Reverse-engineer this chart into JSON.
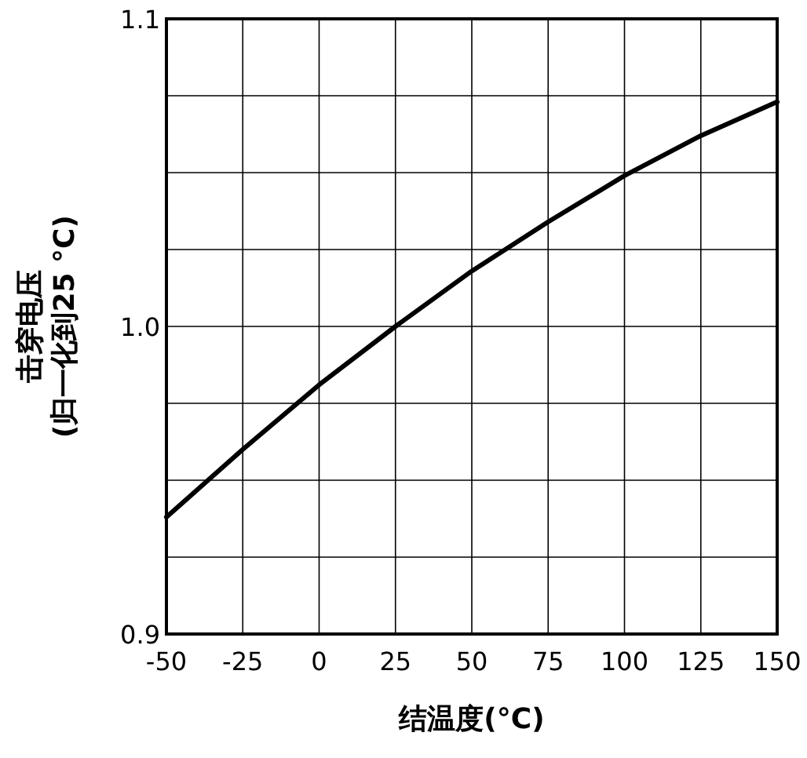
{
  "chart_data": {
    "type": "line",
    "xlabel": "结温度(°C)",
    "ylabel": "击穿电压\n(归一化到25 °C)",
    "x": [
      -50,
      -25,
      0,
      25,
      50,
      75,
      100,
      125,
      150
    ],
    "series": [
      {
        "color": "#000000",
        "values": [
          0.938,
          0.96,
          0.981,
          1.0,
          1.018,
          1.034,
          1.049,
          1.062,
          1.073
        ]
      }
    ],
    "xlim": [
      -50,
      150
    ],
    "ylim": [
      0.9,
      1.1
    ],
    "xticks": [
      -50,
      -25,
      0,
      25,
      50,
      75,
      100,
      125,
      150
    ],
    "yticks": [
      0.9,
      {
        "value": 0.925,
        "label": null
      },
      {
        "value": 0.95,
        "label": null
      },
      {
        "value": 0.975,
        "label": null
      },
      {
        "value": 1.0,
        "label": "1.0"
      },
      {
        "value": 1.025,
        "label": null
      },
      {
        "value": 1.05,
        "label": null
      },
      {
        "value": 1.075,
        "label": null
      },
      1.1
    ],
    "grid": true,
    "marker": "none",
    "line_style": "solid"
  }
}
